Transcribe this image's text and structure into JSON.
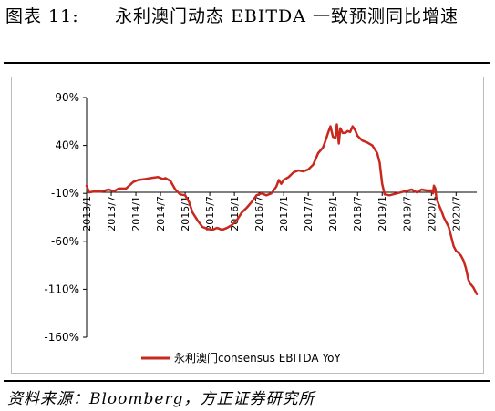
{
  "title": {
    "prefix": "图表 11:",
    "text": "永利澳门动态 EBITDA 一致预测同比增速"
  },
  "source": "资料来源：Bloomberg，方正证券研究所",
  "colors": {
    "series": "#c8281e",
    "axis": "#000000",
    "frame": "#bdbdbd"
  },
  "chart_data": {
    "type": "line",
    "title": "",
    "xlabel": "",
    "ylabel": "",
    "ylim": [
      -160,
      90
    ],
    "y_ticks": [
      "90%",
      "40%",
      "-10%",
      "-60%",
      "-110%",
      "-160%"
    ],
    "y_tick_values": [
      90,
      40,
      -10,
      -60,
      -110,
      -160
    ],
    "x_ticks": [
      "2013/1",
      "2013/7",
      "2014/1",
      "2014/7",
      "2015/1",
      "2015/7",
      "2016/1",
      "2016/7",
      "2017/1",
      "2017/7",
      "2018/1",
      "2018/7",
      "2019/1",
      "2019/7",
      "2020/1",
      "2020/7"
    ],
    "x_range": [
      2013.0,
      2020.92
    ],
    "grid": false,
    "legend_position": "bottom",
    "series": [
      {
        "name": "永利澳门consensus EBITDA YoY",
        "x": [
          2013.0,
          2013.05,
          2013.15,
          2013.3,
          2013.45,
          2013.55,
          2013.65,
          2013.8,
          2013.95,
          2014.05,
          2014.2,
          2014.3,
          2014.45,
          2014.55,
          2014.6,
          2014.7,
          2014.8,
          2014.9,
          2015.0,
          2015.08,
          2015.15,
          2015.25,
          2015.35,
          2015.45,
          2015.55,
          2015.65,
          2015.75,
          2015.85,
          2015.95,
          2016.05,
          2016.15,
          2016.25,
          2016.35,
          2016.45,
          2016.55,
          2016.65,
          2016.75,
          2016.85,
          2016.9,
          2016.95,
          2017.0,
          2017.1,
          2017.2,
          2017.3,
          2017.4,
          2017.5,
          2017.6,
          2017.7,
          2017.8,
          2017.85,
          2017.9,
          2017.95,
          2018.0,
          2018.05,
          2018.08,
          2018.12,
          2018.15,
          2018.2,
          2018.25,
          2018.3,
          2018.35,
          2018.4,
          2018.45,
          2018.5,
          2018.6,
          2018.7,
          2018.8,
          2018.9,
          2018.95,
          2019.0,
          2019.05,
          2019.15,
          2019.3,
          2019.45,
          2019.6,
          2019.7,
          2019.8,
          2019.9,
          2020.0,
          2020.03,
          2020.05,
          2020.08,
          2020.1,
          2020.15,
          2020.2,
          2020.25,
          2020.3,
          2020.35,
          2020.4,
          2020.45,
          2020.5,
          2020.55,
          2020.6,
          2020.65,
          2020.7,
          2020.75,
          2020.8,
          2020.85,
          2020.9,
          2020.92
        ],
        "y": [
          -2,
          -9,
          -8,
          -8,
          -6,
          -8,
          -5,
          -5,
          2,
          4,
          5,
          6,
          7,
          5,
          6,
          3,
          -6,
          -11,
          -12,
          -19,
          -30,
          -38,
          -45,
          -47,
          -48,
          -46,
          -48,
          -46,
          -43,
          -38,
          -30,
          -25,
          -19,
          -12,
          -10,
          -12,
          -10,
          -3,
          4,
          0,
          4,
          7,
          12,
          14,
          13,
          15,
          20,
          32,
          38,
          45,
          53,
          60,
          49,
          48,
          62,
          42,
          58,
          53,
          53,
          55,
          54,
          60,
          56,
          50,
          45,
          43,
          40,
          32,
          22,
          0,
          -11,
          -12,
          -10,
          -8,
          -6,
          -9,
          -6,
          -7,
          -7,
          -10,
          -2,
          -5,
          -15,
          -22,
          -28,
          -35,
          -40,
          -45,
          -55,
          -65,
          -70,
          -72,
          -75,
          -80,
          -88,
          -100,
          -105,
          -108,
          -113,
          -115
        ]
      }
    ]
  }
}
